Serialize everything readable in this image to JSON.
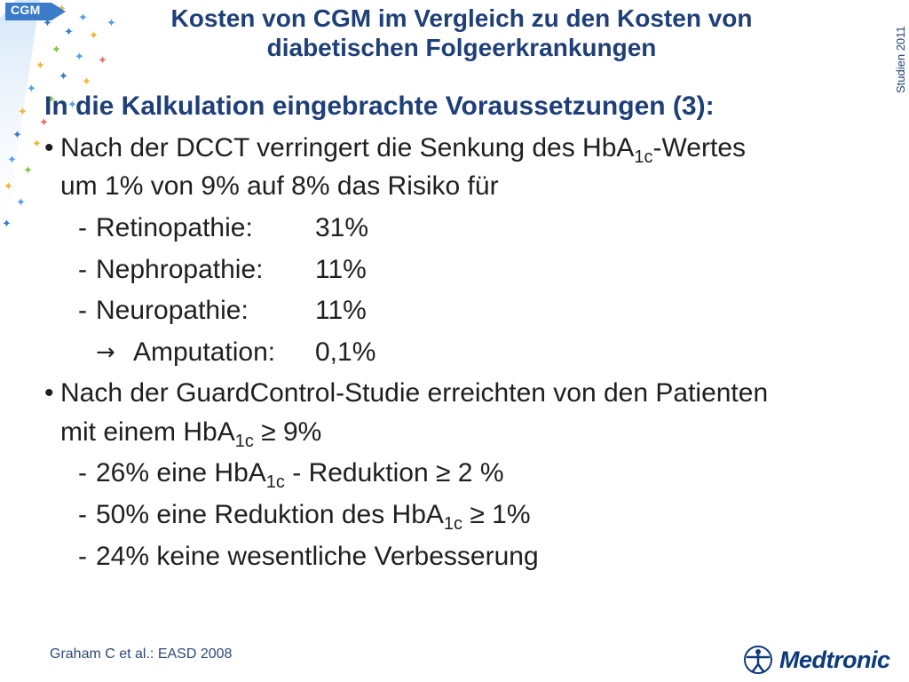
{
  "corner_tag": "CGM",
  "title_line1": "Kosten von CGM im Vergleich zu den Kosten von",
  "title_line2": "diabetischen Folgeerkrankungen",
  "side_label": "Studien 2011",
  "subtitle": "In die Kalkulation eingebrachte Voraussetzungen (3):",
  "bullet1": {
    "line1_pre": "Nach der DCCT verringert die Senkung des HbA",
    "line1_sub": "1c",
    "line1_post": "-Wertes",
    "line2": "um 1% von 9% auf 8% das Risiko für",
    "items": [
      {
        "label": "Retinopathie:",
        "value": "31%"
      },
      {
        "label": "Nephropathie:",
        "value": "11%"
      },
      {
        "label": "Neuropathie:",
        "value": "11%"
      }
    ],
    "arrow_item": {
      "label": "Amputation:",
      "value": "0,1%"
    }
  },
  "bullet2": {
    "line1": "Nach der GuardControl-Studie erreichten von den Patienten",
    "line2_pre": "mit einem HbA",
    "line2_sub": "1c",
    "line2_post": " ≥ 9%",
    "item1_pre": "26% eine HbA",
    "item1_sub": "1c",
    "item1_post": " - Reduktion ≥ 2 %",
    "item2_pre": "50% eine Reduktion des HbA",
    "item2_sub": "1c",
    "item2_post": " ≥ 1%",
    "item3": "24% keine wesentliche Verbesserung"
  },
  "footer": "Graham C et al.: EASD 2008",
  "logo_text": "Medtronic",
  "colors": {
    "title": "#1f3f78",
    "text": "#1f1f1f",
    "tag": "#3a7cc9"
  }
}
